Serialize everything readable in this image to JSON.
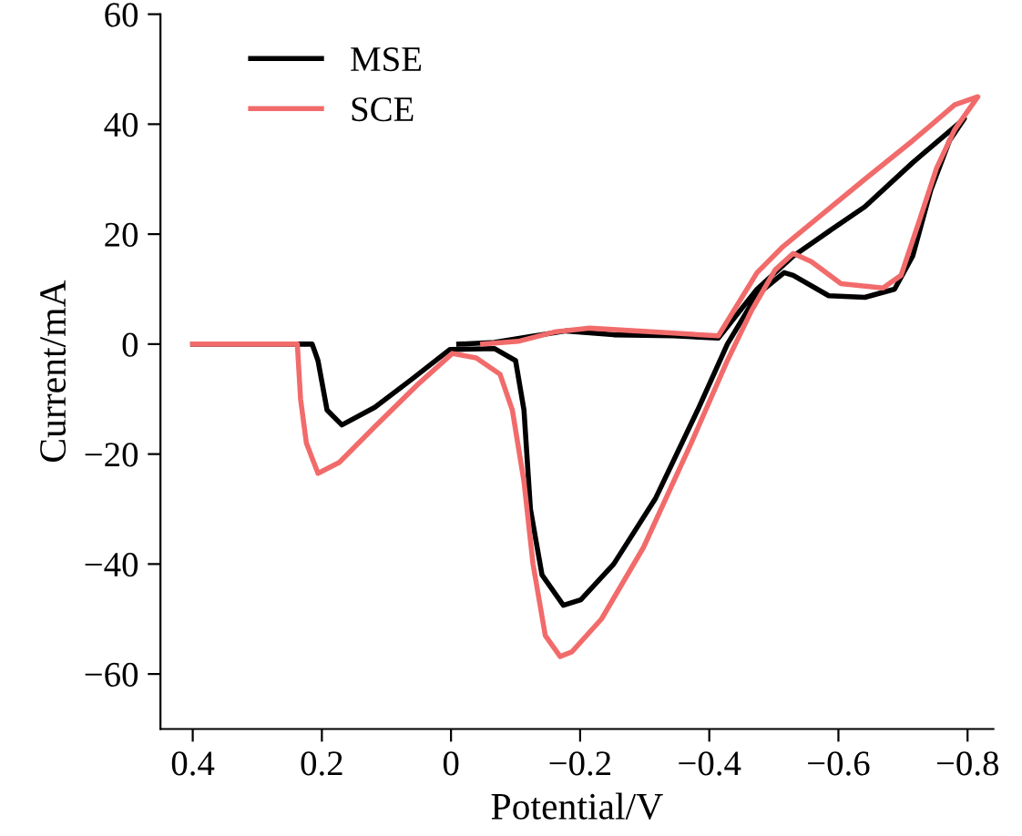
{
  "chart_data": {
    "type": "line",
    "xlabel": "Potential/V",
    "ylabel": "Current/mA",
    "xlim": [
      0.45,
      -0.84
    ],
    "xticks": [
      0.4,
      0.2,
      0,
      {
        "value": -0.2,
        "label": "−0.2"
      },
      {
        "value": -0.4,
        "label": "−0.4"
      },
      {
        "value": -0.6,
        "label": "−0.6"
      },
      {
        "value": -0.8,
        "label": "−0.8"
      }
    ],
    "ylim": [
      -70,
      60
    ],
    "yticks": [
      {
        "value": -60,
        "label": "−60"
      },
      {
        "value": -40,
        "label": "−40"
      },
      {
        "value": -20,
        "label": "−20"
      },
      0,
      20,
      40,
      60
    ],
    "grid": false,
    "legend": "top left",
    "marker": "none",
    "line_style": "solid",
    "series": [
      {
        "name": "MSE",
        "color": "#000000",
        "x": [
          0.4,
          0.215,
          0.206,
          0.192,
          0.169,
          0.118,
          0.062,
          0.002,
          -0.067,
          -0.1,
          -0.113,
          -0.123,
          -0.141,
          -0.174,
          -0.201,
          -0.252,
          -0.317,
          -0.382,
          -0.428,
          -0.474,
          -0.516,
          -0.53,
          -0.585,
          -0.641,
          -0.687,
          -0.715,
          -0.743,
          -0.772,
          -0.795,
          -0.715,
          -0.641,
          -0.585,
          -0.53,
          -0.474,
          -0.414,
          -0.345,
          -0.252,
          -0.178,
          -0.123,
          -0.067,
          -0.012
        ],
        "values": [
          0,
          0,
          -3,
          -12,
          -14.7,
          -11.5,
          -6.5,
          -1,
          -0.8,
          -3,
          -12,
          -30,
          -42,
          -47.5,
          -46.5,
          -40,
          -28,
          -12,
          0,
          9,
          13,
          12.5,
          8.8,
          8.5,
          10,
          16,
          28,
          37,
          41,
          33,
          25,
          20.5,
          16,
          10,
          1.1,
          1.5,
          1.7,
          2.4,
          1.4,
          0.3,
          0
        ]
      },
      {
        "name": "SCE",
        "color": "#f26b6b",
        "x": [
          0.4,
          0.238,
          0.233,
          0.224,
          0.206,
          0.173,
          0.118,
          0.053,
          -0.002,
          -0.039,
          -0.076,
          -0.095,
          -0.113,
          -0.127,
          -0.146,
          -0.169,
          -0.187,
          -0.233,
          -0.298,
          -0.372,
          -0.428,
          -0.465,
          -0.502,
          -0.53,
          -0.558,
          -0.604,
          -0.669,
          -0.697,
          -0.724,
          -0.752,
          -0.78,
          -0.816,
          -0.78,
          -0.715,
          -0.641,
          -0.558,
          -0.512,
          -0.474,
          -0.414,
          -0.345,
          -0.215,
          -0.16,
          -0.104,
          -0.049
        ],
        "values": [
          0,
          0,
          -10,
          -18,
          -23.5,
          -21.5,
          -15,
          -7.5,
          -1.7,
          -2.5,
          -5.5,
          -12,
          -25,
          -40,
          -53,
          -56.8,
          -56,
          -50,
          -37,
          -18,
          -3,
          6,
          13.5,
          16.5,
          15,
          11,
          10.2,
          12.5,
          22,
          32,
          39,
          45,
          43.5,
          37,
          30,
          22,
          17.5,
          13,
          1.5,
          2,
          2.9,
          2.2,
          0.5,
          0
        ]
      }
    ]
  }
}
